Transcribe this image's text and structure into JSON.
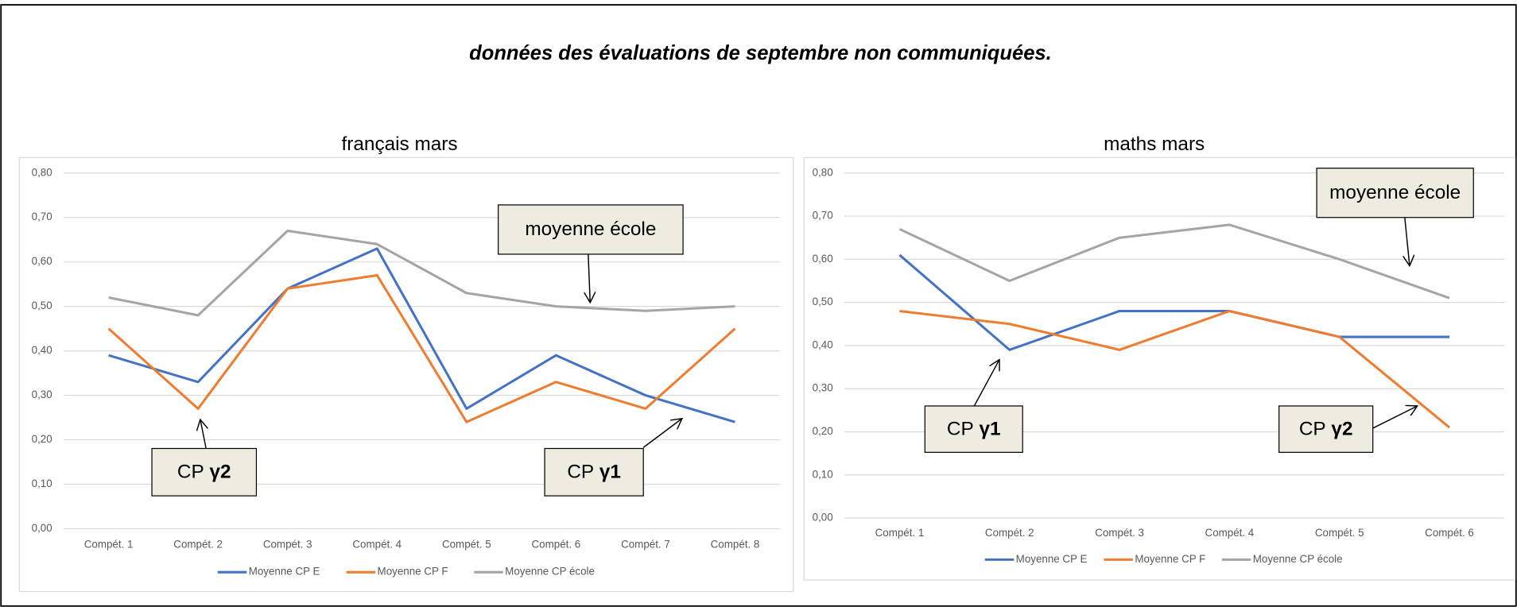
{
  "heading": "données des évaluations de septembre non communiquées.",
  "chart_data": [
    {
      "type": "line",
      "title": "français mars",
      "categories": [
        "Compét. 1",
        "Compét. 2",
        "Compét. 3",
        "Compét. 4",
        "Compét. 5",
        "Compét. 6",
        "Compét. 7",
        "Compét. 8"
      ],
      "series": [
        {
          "name": "Moyenne CP E",
          "color": "#4472c4",
          "values": [
            0.39,
            0.33,
            0.54,
            0.63,
            0.27,
            0.39,
            0.3,
            0.24
          ]
        },
        {
          "name": "Moyenne CP F",
          "color": "#ed7d31",
          "values": [
            0.45,
            0.27,
            0.54,
            0.57,
            0.24,
            0.33,
            0.27,
            0.45
          ]
        },
        {
          "name": "Moyenne CP école",
          "color": "#a5a5a5",
          "values": [
            0.52,
            0.48,
            0.67,
            0.64,
            0.53,
            0.5,
            0.49,
            0.5
          ]
        }
      ],
      "ylim": [
        0,
        0.8
      ],
      "yticks": [
        {
          "value": 0,
          "label": "0,00"
        },
        {
          "value": 0.1,
          "label": "0,10"
        },
        {
          "value": 0.2,
          "label": "0,20"
        },
        {
          "value": 0.3,
          "label": "0,30"
        },
        {
          "value": 0.4,
          "label": "0,40"
        },
        {
          "value": 0.5,
          "label": "0,50"
        },
        {
          "value": 0.6,
          "label": "0,60"
        },
        {
          "value": 0.7,
          "label": "0,70"
        },
        {
          "value": 0.8,
          "label": "0,80"
        }
      ],
      "grid": true,
      "legend": "bottom",
      "annotations": [
        {
          "text": "moyenne école"
        },
        {
          "text": "CP",
          "bold": "γ2"
        },
        {
          "text": "CP",
          "bold": "γ1"
        }
      ]
    },
    {
      "type": "line",
      "title": "maths mars",
      "categories": [
        "Compét. 1",
        "Compét. 2",
        "Compét. 3",
        "Compét. 4",
        "Compét. 5",
        "Compét. 6"
      ],
      "series": [
        {
          "name": "Moyenne CP E",
          "color": "#4472c4",
          "values": [
            0.61,
            0.39,
            0.48,
            0.48,
            0.42,
            0.42
          ]
        },
        {
          "name": "Moyenne CP F",
          "color": "#ed7d31",
          "values": [
            0.48,
            0.45,
            0.39,
            0.48,
            0.42,
            0.21
          ]
        },
        {
          "name": "Moyenne CP école",
          "color": "#a5a5a5",
          "values": [
            0.67,
            0.55,
            0.65,
            0.68,
            0.6,
            0.51
          ]
        }
      ],
      "ylim": [
        0,
        0.8
      ],
      "yticks": [
        {
          "value": 0,
          "label": "0,00"
        },
        {
          "value": 0.1,
          "label": "0,10"
        },
        {
          "value": 0.2,
          "label": "0,20"
        },
        {
          "value": 0.3,
          "label": "0,30"
        },
        {
          "value": 0.4,
          "label": "0,40"
        },
        {
          "value": 0.5,
          "label": "0,50"
        },
        {
          "value": 0.6,
          "label": "0,60"
        },
        {
          "value": 0.7,
          "label": "0,70"
        },
        {
          "value": 0.8,
          "label": "0,80"
        }
      ],
      "grid": true,
      "legend": "bottom",
      "annotations": [
        {
          "text": "moyenne école"
        },
        {
          "text": "CP",
          "bold": "γ1"
        },
        {
          "text": "CP",
          "bold": "γ2"
        }
      ]
    }
  ]
}
